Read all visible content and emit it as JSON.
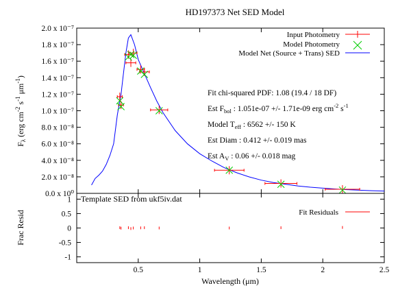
{
  "colors": {
    "input": "#ff0000",
    "model": "#00cc00",
    "sed": "#0000ff",
    "residual": "#ff0000",
    "axis": "#000000"
  },
  "chart_data": [
    {
      "type": "scatter",
      "title": "HD197373 Net SED Model",
      "xlabel": "",
      "ylabel": "Fλ (erg cm⁻² s⁻¹ μm⁻¹)",
      "xlim": [
        0,
        2.5
      ],
      "ylim": [
        0,
        2e-07
      ],
      "yticks": [
        {
          "v": 0,
          "label": "0.0 x 10⁰"
        },
        {
          "v": 2e-08,
          "label": "2.0 x 10⁻⁸"
        },
        {
          "v": 4e-08,
          "label": "4.0 x 10⁻⁸"
        },
        {
          "v": 6e-08,
          "label": "6.0 x 10⁻⁸"
        },
        {
          "v": 8e-08,
          "label": "8.0 x 10⁻⁸"
        },
        {
          "v": 1e-07,
          "label": "1.0 x 10⁻⁷"
        },
        {
          "v": 1.2e-07,
          "label": "1.2 x 10⁻⁷"
        },
        {
          "v": 1.4e-07,
          "label": "1.4 x 10⁻⁷"
        },
        {
          "v": 1.6e-07,
          "label": "1.6 x 10⁻⁷"
        },
        {
          "v": 1.8e-07,
          "label": "1.8 x 10⁻⁷"
        },
        {
          "v": 2e-07,
          "label": "2.0 x 10⁻⁷"
        }
      ],
      "series": [
        {
          "name": "Input Photometry",
          "points": [
            {
              "x": 0.35,
              "y": 1.17e-07,
              "xerr": 0.02
            },
            {
              "x": 0.36,
              "y": 1.07e-07,
              "xerr": 0.02
            },
            {
              "x": 0.42,
              "y": 1.68e-07,
              "xerr": 0.03
            },
            {
              "x": 0.44,
              "y": 1.58e-07,
              "xerr": 0.04
            },
            {
              "x": 0.46,
              "y": 1.7e-07,
              "xerr": 0.03
            },
            {
              "x": 0.52,
              "y": 1.5e-07,
              "xerr": 0.03
            },
            {
              "x": 0.55,
              "y": 1.47e-07,
              "xerr": 0.04
            },
            {
              "x": 0.67,
              "y": 1.01e-07,
              "xerr": 0.07
            },
            {
              "x": 1.24,
              "y": 2.8e-08,
              "xerr": 0.12
            },
            {
              "x": 1.66,
              "y": 1.2e-08,
              "xerr": 0.13
            },
            {
              "x": 2.16,
              "y": 5e-09,
              "xerr": 0.14
            }
          ]
        },
        {
          "name": "Model Photometry",
          "points": [
            {
              "x": 0.35,
              "y": 1.12e-07
            },
            {
              "x": 0.36,
              "y": 1.05e-07
            },
            {
              "x": 0.42,
              "y": 1.65e-07
            },
            {
              "x": 0.44,
              "y": 1.68e-07
            },
            {
              "x": 0.46,
              "y": 1.67e-07
            },
            {
              "x": 0.52,
              "y": 1.48e-07
            },
            {
              "x": 0.55,
              "y": 1.44e-07
            },
            {
              "x": 0.67,
              "y": 1e-07
            },
            {
              "x": 1.24,
              "y": 2.8e-08
            },
            {
              "x": 1.66,
              "y": 1.1e-08
            },
            {
              "x": 2.16,
              "y": 4e-09
            }
          ]
        },
        {
          "name": "Model Net (Source + Trans) SED",
          "points": [
            {
              "x": 0.12,
              "y": 1e-08
            },
            {
              "x": 0.15,
              "y": 1.8e-08
            },
            {
              "x": 0.18,
              "y": 2.2e-08
            },
            {
              "x": 0.21,
              "y": 2.7e-08
            },
            {
              "x": 0.24,
              "y": 3.5e-08
            },
            {
              "x": 0.27,
              "y": 4.6e-08
            },
            {
              "x": 0.3,
              "y": 6e-08
            },
            {
              "x": 0.33,
              "y": 9.5e-08
            },
            {
              "x": 0.36,
              "y": 1.2e-07
            },
            {
              "x": 0.38,
              "y": 1.45e-07
            },
            {
              "x": 0.4,
              "y": 1.7e-07
            },
            {
              "x": 0.42,
              "y": 1.88e-07
            },
            {
              "x": 0.44,
              "y": 1.92e-07
            },
            {
              "x": 0.47,
              "y": 1.8e-07
            },
            {
              "x": 0.5,
              "y": 1.62e-07
            },
            {
              "x": 0.55,
              "y": 1.45e-07
            },
            {
              "x": 0.6,
              "y": 1.28e-07
            },
            {
              "x": 0.65,
              "y": 1.12e-07
            },
            {
              "x": 0.7,
              "y": 9.8e-08
            },
            {
              "x": 0.8,
              "y": 7.6e-08
            },
            {
              "x": 0.9,
              "y": 6e-08
            },
            {
              "x": 1.0,
              "y": 4.8e-08
            },
            {
              "x": 1.1,
              "y": 3.9e-08
            },
            {
              "x": 1.2,
              "y": 3.1e-08
            },
            {
              "x": 1.3,
              "y": 2.5e-08
            },
            {
              "x": 1.4,
              "y": 2e-08
            },
            {
              "x": 1.5,
              "y": 1.6e-08
            },
            {
              "x": 1.6,
              "y": 1.3e-08
            },
            {
              "x": 1.7,
              "y": 1.1e-08
            },
            {
              "x": 1.8,
              "y": 9e-09
            },
            {
              "x": 1.9,
              "y": 7.5e-09
            },
            {
              "x": 2.0,
              "y": 6.3e-09
            },
            {
              "x": 2.1,
              "y": 5.3e-09
            },
            {
              "x": 2.2,
              "y": 4.5e-09
            },
            {
              "x": 2.3,
              "y": 3.8e-09
            },
            {
              "x": 2.4,
              "y": 3.2e-09
            },
            {
              "x": 2.5,
              "y": 2.8e-09
            }
          ]
        }
      ],
      "annotations": {
        "line1": "Fit chi-squared PDF: 1.08 (19.4 / 18 DF)",
        "line2_pre": "Est F",
        "line2_sub": "bol",
        "line2_main": " : 1.051e-07 +/- 1.71e-09 erg cm",
        "line2_sup1": "-2",
        "line2_mid": " s",
        "line2_sup2": "-1",
        "line3_pre": "Model T",
        "line3_sub": "eff",
        "line3_main": " : 6562 +/- 150 K",
        "line4": "Est Diam : 0.412 +/- 0.019 mas",
        "line5_pre": "Est A",
        "line5_sub": "V",
        "line5_main": " : 0.06 +/- 0.018 mag"
      }
    },
    {
      "type": "scatter",
      "title": "Template SED from ukf5iv.dat",
      "xlabel": "Wavelength (μm)",
      "ylabel": "Frac Resid",
      "xlim": [
        0,
        2.5
      ],
      "ylim": [
        -1.2,
        1.2
      ],
      "xticks": [
        {
          "v": 0.5,
          "label": "0.5"
        },
        {
          "v": 1,
          "label": "1"
        },
        {
          "v": 1.5,
          "label": "1.5"
        },
        {
          "v": 2,
          "label": "2"
        },
        {
          "v": 2.5,
          "label": "2.5"
        }
      ],
      "yticks": [
        {
          "v": 1,
          "label": "1"
        },
        {
          "v": 0.5,
          "label": "0.5"
        },
        {
          "v": 0,
          "label": "0"
        },
        {
          "v": -0.5,
          "label": "-0.5"
        },
        {
          "v": -1,
          "label": "-1"
        }
      ],
      "series": [
        {
          "name": "Fit Residuals",
          "points": [
            {
              "x": 0.35,
              "y": 0.01
            },
            {
              "x": 0.36,
              "y": -0.005
            },
            {
              "x": 0.42,
              "y": 0.01
            },
            {
              "x": 0.44,
              "y": -0.02
            },
            {
              "x": 0.46,
              "y": 0.0
            },
            {
              "x": 0.52,
              "y": 0.005
            },
            {
              "x": 0.55,
              "y": 0.01
            },
            {
              "x": 0.67,
              "y": 0.0
            },
            {
              "x": 1.24,
              "y": 0.0
            },
            {
              "x": 1.66,
              "y": 0.01
            },
            {
              "x": 2.16,
              "y": 0.02
            }
          ]
        }
      ]
    }
  ]
}
